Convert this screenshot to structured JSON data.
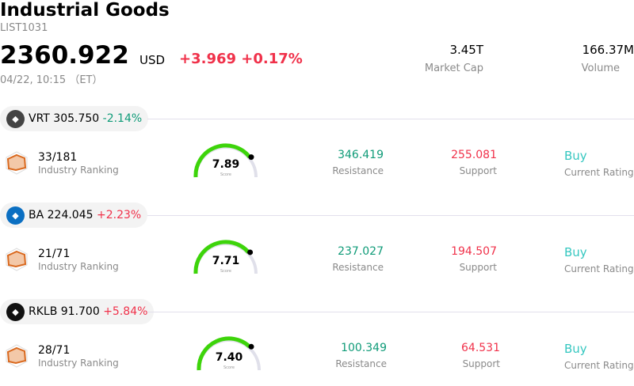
{
  "header": {
    "title": "Industrial Goods",
    "code": "LIST1031",
    "price": "2360.922",
    "currency": "USD",
    "change": "+3.969 +0.17%",
    "time": "04/22, 10:15 （ET）",
    "market_cap": {
      "value": "3.45T",
      "label": "Market Cap"
    },
    "volume": {
      "value": "166.37M",
      "label": "Volume"
    }
  },
  "colors": {
    "up": "#f0314a",
    "down": "#0f9b78",
    "rating": "#35c7c0",
    "gauge": "#3dd40a",
    "track": "#e0e0ea"
  },
  "stocks": [
    {
      "ticker": "VRT 305.750",
      "change": "-2.14%",
      "dir": "down",
      "logo_bg": "#444",
      "logo_icon": "vertiv-logo",
      "ranking": "33/181",
      "ranking_label": "Industry Ranking",
      "score": 7.89,
      "score_label": "Score",
      "resistance": "346.419",
      "resistance_label": "Resistance",
      "support": "255.081",
      "support_label": "Support",
      "rating": "Buy",
      "rating_label": "Current Rating"
    },
    {
      "ticker": "BA 224.045",
      "change": "+2.23%",
      "dir": "up",
      "logo_bg": "#0b6fc2",
      "logo_icon": "boeing-logo",
      "ranking": "21/71",
      "ranking_label": "Industry Ranking",
      "score": 7.71,
      "score_label": "Score",
      "resistance": "237.027",
      "resistance_label": "Resistance",
      "support": "194.507",
      "support_label": "Support",
      "rating": "Buy",
      "rating_label": "Current Rating"
    },
    {
      "ticker": "RKLB 91.700",
      "change": "+5.84%",
      "dir": "up",
      "logo_bg": "#111",
      "logo_icon": "rocketlab-logo",
      "ranking": "28/71",
      "ranking_label": "Industry Ranking",
      "score": 7.4,
      "score_label": "Score",
      "resistance": "100.349",
      "resistance_label": "Resistance",
      "support": "64.531",
      "support_label": "Support",
      "rating": "Buy",
      "rating_label": "Current Rating"
    }
  ]
}
